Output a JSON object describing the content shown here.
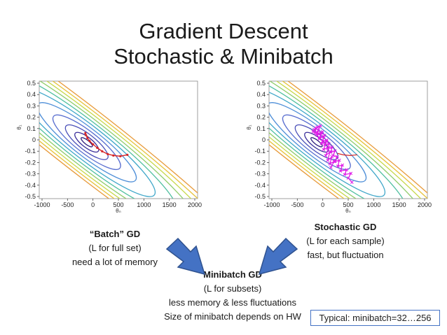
{
  "title": {
    "line1": "Gradient Descent",
    "line2": "Stochastic & Minibatch"
  },
  "plots": {
    "x_ticks": [
      "-1000",
      "-500",
      "0",
      "500",
      "1000",
      "1500",
      "2000"
    ],
    "y_ticks": [
      "0.5",
      "0.4",
      "0.3",
      "0.2",
      "0.1",
      "0",
      "-0.1",
      "-0.2",
      "-0.3",
      "-0.4",
      "-0.5"
    ],
    "xlabel": "θ₀",
    "ylabel": "θ₁",
    "colors": {
      "path_batch": "#d62728",
      "path_stochastic": "#e01ee8",
      "contour_inner": "#3a2f8f"
    }
  },
  "batch": {
    "head": "“Batch” GD",
    "line1": "(L for full set)",
    "line2": "need a lot of memory"
  },
  "stochastic": {
    "head": "Stochastic GD",
    "line1": "(L for each sample)",
    "line2": "fast, but fluctuation"
  },
  "minibatch": {
    "head": "Minibatch GD",
    "line1": "(L for subsets)",
    "line2": "less memory & less fluctuations",
    "line3": "Size of minibatch depends on HW"
  },
  "typical": "Typical: minibatch=32…256",
  "arrow_color": "#4472c4"
}
